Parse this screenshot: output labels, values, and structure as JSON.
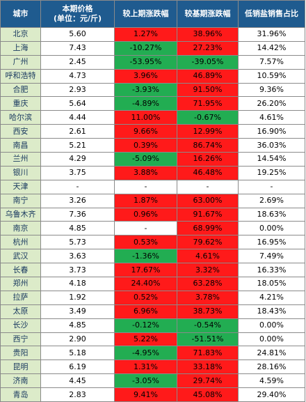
{
  "headers": {
    "city": "城市",
    "price_line1": "本期价格",
    "price_line2": "(单位：元/斤)",
    "mom": "较上期涨跌幅",
    "yoy": "较基期涨跌幅",
    "share": "低销盐销售占比"
  },
  "rows": [
    {
      "city": "北京",
      "price": "5.60",
      "mom": "1.27%",
      "mom_dir": "up",
      "yoy": "38.96%",
      "yoy_dir": "up",
      "share": "31.96%"
    },
    {
      "city": "上海",
      "price": "7.43",
      "mom": "-10.27%",
      "mom_dir": "down",
      "yoy": "27.23%",
      "yoy_dir": "up",
      "share": "14.42%"
    },
    {
      "city": "广州",
      "price": "2.45",
      "mom": "-53.95%",
      "mom_dir": "down",
      "yoy": "-39.05%",
      "yoy_dir": "down",
      "share": "7.57%"
    },
    {
      "city": "呼和浩特",
      "price": "4.73",
      "mom": "3.96%",
      "mom_dir": "up",
      "yoy": "46.89%",
      "yoy_dir": "up",
      "share": "10.59%"
    },
    {
      "city": "合肥",
      "price": "2.93",
      "mom": "-3.93%",
      "mom_dir": "down",
      "yoy": "91.50%",
      "yoy_dir": "up",
      "share": "9.36%"
    },
    {
      "city": "重庆",
      "price": "5.64",
      "mom": "-4.89%",
      "mom_dir": "down",
      "yoy": "71.95%",
      "yoy_dir": "up",
      "share": "26.20%"
    },
    {
      "city": "哈尔滨",
      "price": "4.44",
      "mom": "11.00%",
      "mom_dir": "up",
      "yoy": "-0.67%",
      "yoy_dir": "down",
      "share": "4.61%"
    },
    {
      "city": "西安",
      "price": "2.61",
      "mom": "9.66%",
      "mom_dir": "up",
      "yoy": "12.99%",
      "yoy_dir": "up",
      "share": "16.90%"
    },
    {
      "city": "南昌",
      "price": "5.21",
      "mom": "0.39%",
      "mom_dir": "up",
      "yoy": "86.74%",
      "yoy_dir": "up",
      "share": "36.03%"
    },
    {
      "city": "兰州",
      "price": "4.29",
      "mom": "-5.09%",
      "mom_dir": "down",
      "yoy": "16.26%",
      "yoy_dir": "up",
      "share": "14.54%"
    },
    {
      "city": "银川",
      "price": "3.75",
      "mom": "3.88%",
      "mom_dir": "up",
      "yoy": "46.48%",
      "yoy_dir": "up",
      "share": "19.25%"
    },
    {
      "city": "天津",
      "price": "-",
      "mom": "-",
      "mom_dir": "none",
      "yoy": "-",
      "yoy_dir": "none",
      "share": "-"
    },
    {
      "city": "南宁",
      "price": "3.26",
      "mom": "1.87%",
      "mom_dir": "up",
      "yoy": "63.00%",
      "yoy_dir": "up",
      "share": "2.69%"
    },
    {
      "city": "乌鲁木齐",
      "price": "7.36",
      "mom": "0.96%",
      "mom_dir": "up",
      "yoy": "91.67%",
      "yoy_dir": "up",
      "share": "18.63%"
    },
    {
      "city": "南京",
      "price": "4.85",
      "mom": "-",
      "mom_dir": "none",
      "yoy": "68.99%",
      "yoy_dir": "up",
      "share": "0.00%"
    },
    {
      "city": "杭州",
      "price": "5.73",
      "mom": "0.53%",
      "mom_dir": "up",
      "yoy": "79.62%",
      "yoy_dir": "up",
      "share": "16.95%"
    },
    {
      "city": "武汉",
      "price": "3.63",
      "mom": "-1.36%",
      "mom_dir": "down",
      "yoy": "4.61%",
      "yoy_dir": "up",
      "share": "7.49%"
    },
    {
      "city": "长春",
      "price": "3.73",
      "mom": "17.67%",
      "mom_dir": "up",
      "yoy": "3.32%",
      "yoy_dir": "up",
      "share": "16.33%"
    },
    {
      "city": "郑州",
      "price": "4.18",
      "mom": "24.40%",
      "mom_dir": "up",
      "yoy": "63.28%",
      "yoy_dir": "up",
      "share": "18.05%"
    },
    {
      "city": "拉萨",
      "price": "1.92",
      "mom": "0.52%",
      "mom_dir": "up",
      "yoy": "3.78%",
      "yoy_dir": "up",
      "share": "4.21%"
    },
    {
      "city": "太原",
      "price": "3.49",
      "mom": "6.96%",
      "mom_dir": "up",
      "yoy": "38.73%",
      "yoy_dir": "up",
      "share": "18.43%"
    },
    {
      "city": "长沙",
      "price": "4.85",
      "mom": "-0.12%",
      "mom_dir": "down",
      "yoy": "-0.54%",
      "yoy_dir": "down",
      "share": "0.00%"
    },
    {
      "city": "西宁",
      "price": "2.90",
      "mom": "5.22%",
      "mom_dir": "up",
      "yoy": "-51.51%",
      "yoy_dir": "down",
      "share": "0.00%"
    },
    {
      "city": "贵阳",
      "price": "5.18",
      "mom": "-4.95%",
      "mom_dir": "down",
      "yoy": "71.83%",
      "yoy_dir": "up",
      "share": "24.81%"
    },
    {
      "city": "昆明",
      "price": "6.19",
      "mom": "1.31%",
      "mom_dir": "up",
      "yoy": "33.18%",
      "yoy_dir": "up",
      "share": "28.16%"
    },
    {
      "city": "济南",
      "price": "4.45",
      "mom": "-3.05%",
      "mom_dir": "down",
      "yoy": "29.74%",
      "yoy_dir": "up",
      "share": "4.59%"
    },
    {
      "city": "青岛",
      "price": "2.83",
      "mom": "9.41%",
      "mom_dir": "up",
      "yoy": "45.08%",
      "yoy_dir": "up",
      "share": "29.40%"
    }
  ],
  "colors": {
    "header_bg": "#1f5b8f",
    "city_bg": "#dcebc9",
    "increase": "#ff1a1a",
    "decrease": "#22ad52"
  }
}
